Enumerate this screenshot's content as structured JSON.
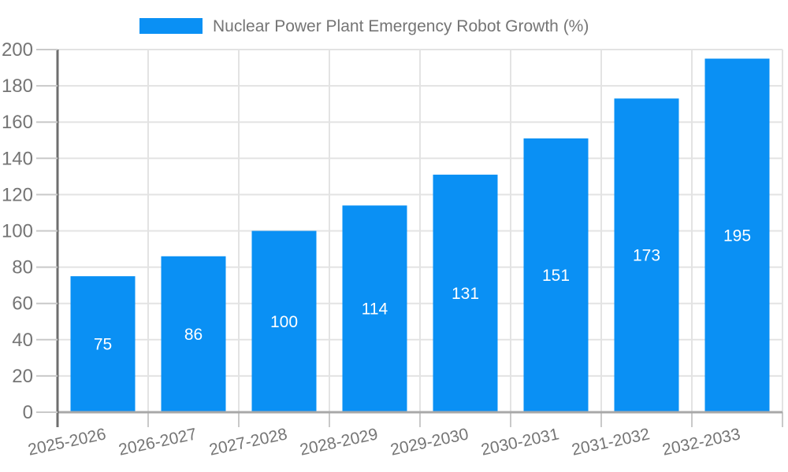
{
  "chart_data": {
    "type": "bar",
    "title": "Nuclear Power Plant Emergency Robot Growth (%)",
    "legend": {
      "position": "top-center",
      "entries": [
        "Nuclear Power Plant Emergency Robot Growth (%)"
      ]
    },
    "categories": [
      "2025-2026",
      "2026-2027",
      "2027-2028",
      "2028-2029",
      "2029-2030",
      "2030-2031",
      "2031-2032",
      "2032-2033"
    ],
    "series": [
      {
        "name": "Nuclear Power Plant Emergency Robot Growth (%)",
        "values": [
          75,
          86,
          100,
          114,
          131,
          151,
          173,
          195
        ]
      }
    ],
    "bar_value_labels": [
      "75",
      "86",
      "100",
      "114",
      "131",
      "151",
      "173",
      "195"
    ],
    "xlabel": "",
    "ylabel": "",
    "ylim": [
      0,
      200
    ],
    "ytick_step": 20,
    "ytick_labels": [
      "0",
      "20",
      "40",
      "60",
      "80",
      "100",
      "120",
      "140",
      "160",
      "180",
      "200"
    ],
    "grid": true,
    "x_label_rotation_deg": -12,
    "colors": {
      "bar": "#0a90f4",
      "bar_value_text": "#ffffff",
      "grid_line": "#e3e3e3",
      "x_axis_line": "#a8a8a8",
      "y_axis_line": "#6e6e6e",
      "tick_mark": "#c9c9c9",
      "tick_text": "#757575",
      "legend_text": "#757575",
      "background": "#ffffff"
    }
  }
}
